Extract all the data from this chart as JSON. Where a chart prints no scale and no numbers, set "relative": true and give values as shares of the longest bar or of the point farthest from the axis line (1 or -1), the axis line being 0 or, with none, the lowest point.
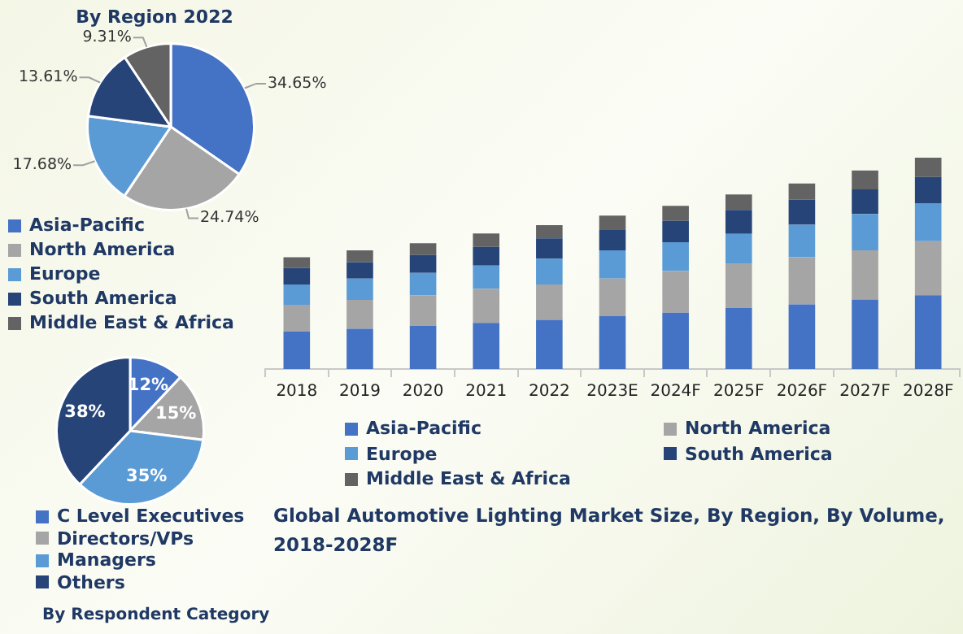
{
  "chart_data": [
    {
      "type": "pie",
      "title": "By Region 2022",
      "categories": [
        "Asia-Pacific",
        "North America",
        "Europe",
        "South America",
        "Middle East & Africa"
      ],
      "values": [
        34.65,
        24.74,
        17.68,
        13.61,
        9.31
      ],
      "value_labels": [
        "34.65%",
        "24.74%",
        "17.68%",
        "13.61%",
        "9.31%"
      ],
      "colors": [
        "#4472c4",
        "#a5a5a5",
        "#5b9bd5",
        "#264478",
        "#636363"
      ],
      "legend": "bottom"
    },
    {
      "type": "pie",
      "title": "By Respondent Category",
      "categories": [
        "C Level Executives",
        "Directors/VPs",
        "Managers",
        "Others"
      ],
      "values": [
        12,
        15,
        35,
        38
      ],
      "value_labels": [
        "12%",
        "15%",
        "35%",
        "38%"
      ],
      "colors": [
        "#4472c4",
        "#a5a5a5",
        "#5b9bd5",
        "#264478"
      ],
      "legend": "bottom"
    },
    {
      "type": "bar",
      "stacked": true,
      "relative": true,
      "title": "Global Automotive Lighting Market Size, By Region, By Volume, 2018-2028F",
      "categories": [
        "2018",
        "2019",
        "2020",
        "2021",
        "2022",
        "2023E",
        "2024F",
        "2025F",
        "2026F",
        "2027F",
        "2028F"
      ],
      "legend": "bottom",
      "series": [
        {
          "name": "Asia-Pacific",
          "color": "#4472c4",
          "values": [
            0.177,
            0.19,
            0.205,
            0.218,
            0.233,
            0.251,
            0.266,
            0.289,
            0.306,
            0.329,
            0.349
          ]
        },
        {
          "name": "North America",
          "color": "#a5a5a5",
          "values": [
            0.127,
            0.137,
            0.144,
            0.162,
            0.167,
            0.177,
            0.197,
            0.208,
            0.223,
            0.233,
            0.256
          ]
        },
        {
          "name": "Europe",
          "color": "#5b9bd5",
          "values": [
            0.096,
            0.101,
            0.106,
            0.109,
            0.122,
            0.134,
            0.137,
            0.142,
            0.154,
            0.172,
            0.18
          ]
        },
        {
          "name": "South America",
          "color": "#264478",
          "values": [
            0.078,
            0.078,
            0.084,
            0.089,
            0.096,
            0.096,
            0.101,
            0.114,
            0.119,
            0.116,
            0.124
          ]
        },
        {
          "name": "Middle East & Africa",
          "color": "#636363",
          "values": [
            0.051,
            0.056,
            0.056,
            0.063,
            0.063,
            0.068,
            0.071,
            0.073,
            0.076,
            0.089,
            0.091
          ]
        }
      ]
    }
  ]
}
